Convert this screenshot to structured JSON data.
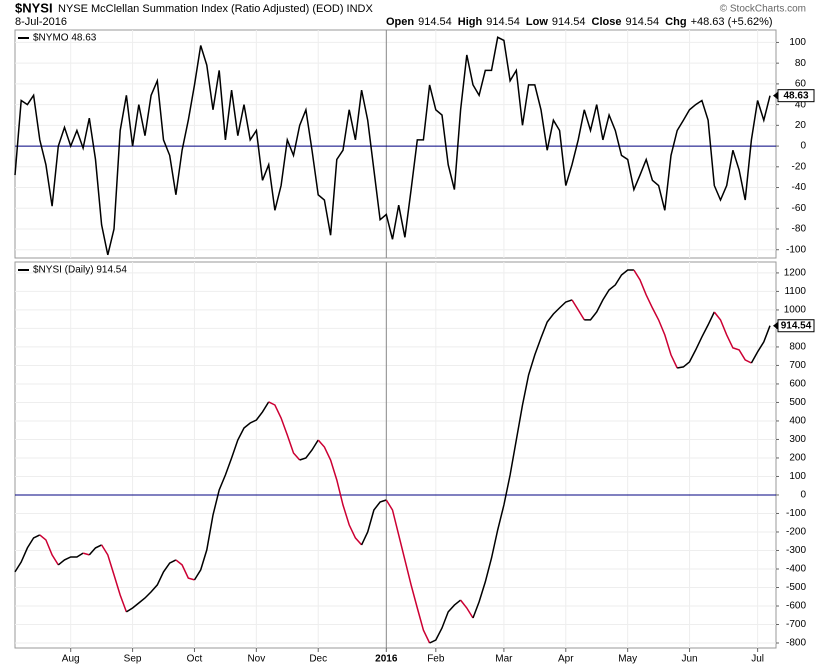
{
  "header": {
    "symbol": "$NYSI",
    "name": "NYSE McClellan Summation Index (Ratio Adjusted) (EOD) INDX",
    "date": "8-Jul-2016",
    "quote": [
      {
        "label": "Open",
        "value": "914.54"
      },
      {
        "label": "High",
        "value": "914.54"
      },
      {
        "label": "Low",
        "value": "914.54"
      },
      {
        "label": "Close",
        "value": "914.54"
      },
      {
        "label": "Chg",
        "value": "+48.63 (+5.62%)"
      }
    ],
    "copyright": "© StockCharts.com"
  },
  "chart_data": [
    {
      "type": "line",
      "panel_label": "$NYMO 48.63",
      "ylim": [
        -108,
        112
      ],
      "yticks": [
        -100,
        -80,
        -60,
        -40,
        -20,
        0,
        20,
        40,
        60,
        80,
        100
      ],
      "reference_line": 0,
      "reference_color": "#000080",
      "grid": true,
      "series": [
        {
          "name": "$NYMO",
          "color": "#000000",
          "values": [
            -28,
            44,
            40,
            49,
            6,
            -18,
            -58,
            0,
            18,
            0,
            15,
            -2,
            27,
            -13,
            -76,
            -105,
            -80,
            15,
            49,
            0,
            40,
            10,
            49,
            63,
            6,
            -9,
            -47,
            -4,
            25,
            59,
            97,
            78,
            35,
            73,
            6,
            54,
            10,
            40,
            6,
            15,
            -33,
            -18,
            -62,
            -38,
            6,
            -9,
            20,
            35,
            -4,
            -47,
            -52,
            -86,
            -13,
            -4,
            35,
            6,
            54,
            25,
            -23,
            -71,
            -66,
            -90,
            -57,
            -88,
            -42,
            6,
            6,
            59,
            35,
            30,
            -18,
            -42,
            35,
            88,
            59,
            49,
            73,
            73,
            105,
            102,
            63,
            73,
            20,
            59,
            59,
            35,
            -4,
            25,
            15,
            -38,
            -18,
            6,
            35,
            15,
            40,
            6,
            30,
            15,
            -9,
            -13,
            -42,
            -28,
            -13,
            -33,
            -38,
            -62,
            -9,
            15,
            25,
            35,
            40,
            44,
            25,
            -38,
            -52,
            -38,
            -4,
            -23,
            -52,
            6,
            44,
            25,
            48.63
          ]
        }
      ]
    },
    {
      "type": "updown_line",
      "panel_label": "$NYSI (Daily) 914.54",
      "ylim": [
        -827,
        1259
      ],
      "yticks": [
        -800,
        -700,
        -600,
        -500,
        -400,
        -300,
        -200,
        -100,
        0,
        100,
        200,
        300,
        400,
        500,
        600,
        700,
        800,
        900,
        1000,
        1100,
        1200
      ],
      "reference_line": 0,
      "reference_color": "#000080",
      "grid": true,
      "up_color": "#000000",
      "down_color": "#cc0033",
      "categories": [
        null,
        null,
        null,
        null,
        null,
        null,
        null,
        null,
        null,
        "Aug",
        null,
        null,
        null,
        null,
        null,
        null,
        null,
        null,
        null,
        "Sep",
        null,
        null,
        null,
        null,
        null,
        null,
        null,
        null,
        null,
        "Oct",
        null,
        null,
        null,
        null,
        null,
        null,
        null,
        null,
        null,
        "Nov",
        null,
        null,
        null,
        null,
        null,
        null,
        null,
        null,
        null,
        "Dec",
        null,
        null,
        null,
        null,
        null,
        null,
        null,
        null,
        null,
        null,
        "2016",
        null,
        null,
        null,
        null,
        null,
        null,
        null,
        "Feb",
        null,
        null,
        null,
        null,
        null,
        null,
        null,
        null,
        null,
        null,
        "Mar",
        null,
        null,
        null,
        null,
        null,
        null,
        null,
        null,
        null,
        "Apr",
        null,
        null,
        null,
        null,
        null,
        null,
        null,
        null,
        null,
        "May",
        null,
        null,
        null,
        null,
        null,
        null,
        null,
        null,
        null,
        "Jun",
        null,
        null,
        null,
        null,
        null,
        null,
        null,
        null,
        null,
        null,
        "Jul",
        null,
        null
      ],
      "series": [
        {
          "name": "$NYSI",
          "values": [
            -416,
            -362,
            -286,
            -232,
            -216,
            -243,
            -324,
            -378,
            -351,
            -335,
            -335,
            -314,
            -324,
            -286,
            -270,
            -324,
            -432,
            -541,
            -632,
            -611,
            -584,
            -557,
            -524,
            -486,
            -416,
            -368,
            -351,
            -378,
            -449,
            -459,
            -405,
            -297,
            -108,
            27,
            108,
            200,
            297,
            362,
            389,
            405,
            449,
            503,
            486,
            416,
            324,
            227,
            189,
            200,
            243,
            297,
            259,
            189,
            81,
            -54,
            -162,
            -232,
            -270,
            -200,
            -81,
            -38,
            -27,
            -81,
            -216,
            -351,
            -486,
            -611,
            -730,
            -800,
            -784,
            -719,
            -632,
            -595,
            -568,
            -611,
            -665,
            -578,
            -470,
            -341,
            -189,
            -54,
            108,
            297,
            486,
            649,
            757,
            849,
            935,
            978,
            1011,
            1043,
            1054,
            1000,
            946,
            946,
            989,
            1054,
            1108,
            1135,
            1189,
            1216,
            1216,
            1162,
            1081,
            1011,
            946,
            865,
            757,
            686,
            692,
            719,
            784,
            854,
            919,
            989,
            946,
            865,
            795,
            784,
            730,
            713,
            773,
            827,
            914.54
          ]
        }
      ]
    }
  ]
}
